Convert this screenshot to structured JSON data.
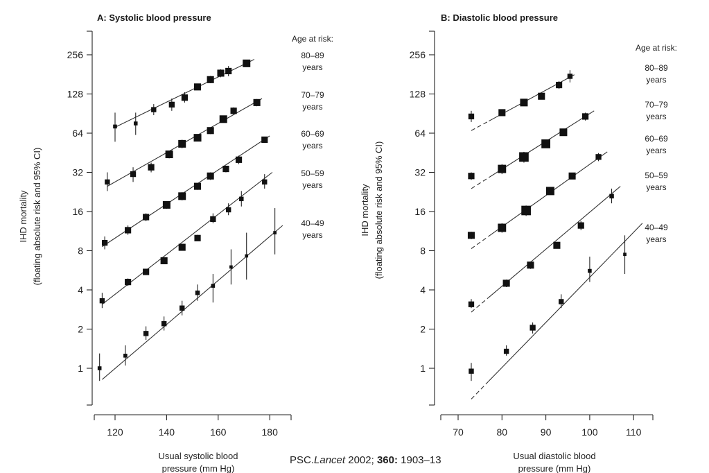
{
  "citation": {
    "prefix": "PSC.",
    "journal": "Lancet",
    "year": " 2002; ",
    "volume": "360:",
    "pages": " 1903–13"
  },
  "chart_data": [
    {
      "type": "scatter",
      "title": "A: Systolic blood pressure",
      "xlabel": [
        "Usual systolic blood",
        "pressure (mm Hg)"
      ],
      "ylabel": [
        "IHD mortality",
        "(floating absolute risk and 95% CI)"
      ],
      "yscale": "log2",
      "xlim": [
        112,
        186
      ],
      "ylim": [
        0.5,
        310
      ],
      "xticks": [
        120,
        140,
        160,
        180
      ],
      "yticks": [
        1,
        2,
        4,
        8,
        16,
        32,
        64,
        128,
        256
      ],
      "ytick_labels": [
        "1",
        "2",
        "4",
        "8",
        "16",
        "32",
        "64",
        "128",
        "256"
      ],
      "legend_title": "Age at risk:",
      "series": [
        {
          "name": "80–89 years",
          "x": [
            120,
            128,
            135,
            142,
            147,
            152,
            157,
            161,
            164,
            171
          ],
          "y": [
            72,
            76,
            97,
            106,
            120,
            145,
            165,
            185,
            192,
            220
          ],
          "lo": [
            55,
            62,
            88,
            95,
            110,
            138,
            155,
            172,
            175,
            210
          ],
          "hi": [
            92,
            92,
            107,
            118,
            132,
            153,
            176,
            198,
            210,
            230
          ],
          "w": [
            0.4,
            0.4,
            0.6,
            0.7,
            0.8,
            0.9,
            0.9,
            0.9,
            0.8,
            1.0
          ],
          "fit": [
            [
              120,
              71
            ],
            [
              174,
              236
            ]
          ]
        },
        {
          "name": "70–79 years",
          "x": [
            117,
            127,
            134,
            141,
            146,
            152,
            157,
            162,
            166,
            175
          ],
          "y": [
            27,
            31,
            35,
            44,
            53,
            59,
            67,
            82,
            95,
            110
          ],
          "lo": [
            23,
            27,
            32,
            41,
            49,
            56,
            63,
            78,
            89,
            103
          ],
          "hi": [
            32,
            35,
            38,
            47,
            57,
            62,
            71,
            86,
            101,
            117
          ],
          "w": [
            0.6,
            0.7,
            0.8,
            1.0,
            1.0,
            1.0,
            0.9,
            1.0,
            0.8,
            0.9
          ],
          "fit": [
            [
              117,
              25
            ],
            [
              177,
              118
            ]
          ]
        },
        {
          "name": "60–69 years",
          "x": [
            116,
            125,
            132,
            140,
            146,
            152,
            157,
            163,
            168,
            178
          ],
          "y": [
            9.2,
            11.5,
            14.5,
            18,
            21,
            25,
            30,
            34,
            40,
            57
          ],
          "lo": [
            8.2,
            10.6,
            13.5,
            16.8,
            19.5,
            23.5,
            28,
            32,
            37,
            54
          ],
          "hi": [
            10.3,
            12.5,
            15.5,
            19.2,
            22.5,
            26.5,
            32,
            36,
            43,
            60
          ],
          "w": [
            0.7,
            0.8,
            0.8,
            1.0,
            1.0,
            0.9,
            0.9,
            0.8,
            0.8,
            0.8
          ],
          "fit": [
            [
              115,
              8.6
            ],
            [
              180,
              61
            ]
          ]
        },
        {
          "name": "50–59 years",
          "x": [
            115,
            125,
            132,
            139,
            146,
            152,
            158,
            164,
            169,
            178
          ],
          "y": [
            3.3,
            4.6,
            5.5,
            6.7,
            8.5,
            10,
            14,
            16.5,
            20,
            27
          ],
          "lo": [
            2.9,
            4.3,
            5.2,
            6.4,
            8.1,
            9.5,
            13,
            15,
            17.5,
            24
          ],
          "hi": [
            3.8,
            4.9,
            5.8,
            7.0,
            8.9,
            10.6,
            15.5,
            18.5,
            23,
            31
          ],
          "w": [
            0.6,
            0.8,
            0.8,
            0.9,
            0.9,
            0.8,
            0.7,
            0.6,
            0.5,
            0.6
          ],
          "fit": [
            [
              115,
              3.1
            ],
            [
              181,
              32
            ]
          ]
        },
        {
          "name": "40–49 years",
          "x": [
            114,
            124,
            132,
            139,
            146,
            152,
            158,
            165,
            171,
            182
          ],
          "y": [
            1.0,
            1.25,
            1.85,
            2.2,
            2.9,
            3.8,
            4.3,
            6.0,
            7.3,
            11
          ],
          "lo": [
            0.8,
            1.05,
            1.65,
            1.95,
            2.55,
            3.3,
            3.2,
            4.4,
            4.8,
            7.5
          ],
          "hi": [
            1.3,
            1.5,
            2.1,
            2.5,
            3.3,
            4.4,
            5.3,
            8.2,
            11,
            17
          ],
          "w": [
            0.4,
            0.4,
            0.6,
            0.6,
            0.6,
            0.5,
            0.4,
            0.3,
            0.3,
            0.3
          ],
          "fit": [
            [
              115,
              0.82
            ],
            [
              185,
              12.5
            ]
          ]
        }
      ]
    },
    {
      "type": "scatter",
      "title": "B: Diastolic blood pressure",
      "xlabel": [
        "Usual diastolic blood",
        "pressure (mm Hg)"
      ],
      "ylabel": [
        "IHD mortality",
        "(floating absolute risk and 95% CI)"
      ],
      "yscale": "log2",
      "xlim": [
        66.5,
        113.5
      ],
      "ylim": [
        0.5,
        310
      ],
      "xticks": [
        70,
        80,
        90,
        100,
        110
      ],
      "yticks": [
        1,
        2,
        4,
        8,
        16,
        32,
        64,
        128,
        256
      ],
      "ytick_labels": [
        "1",
        "2",
        "4",
        "8",
        "16",
        "32",
        "64",
        "128",
        "256"
      ],
      "legend_title": "Age at risk:",
      "series": [
        {
          "name": "80–89 years",
          "x": [
            73,
            80,
            85,
            89,
            93,
            95.5
          ],
          "y": [
            86,
            92,
            110,
            123,
            150,
            175
          ],
          "lo": [
            78,
            88,
            104,
            117,
            140,
            157
          ],
          "hi": [
            95,
            97,
            116,
            130,
            161,
            195
          ],
          "w": [
            0.7,
            0.9,
            1.0,
            0.9,
            0.8,
            0.6
          ],
          "fit": [
            [
              73,
              67
            ],
            [
              96.5,
              180
            ]
          ],
          "dash_until": 77
        },
        {
          "name": "70–79 years",
          "x": [
            73,
            80,
            85,
            90,
            94,
            99
          ],
          "y": [
            30,
            34,
            42,
            53,
            65,
            86
          ],
          "lo": [
            28,
            31,
            38,
            50,
            62,
            80
          ],
          "hi": [
            32,
            37,
            46,
            56,
            69,
            92
          ],
          "w": [
            0.8,
            1.1,
            1.3,
            1.2,
            1.0,
            0.8
          ],
          "fit": [
            [
              73,
              24
            ],
            [
              101,
              95
            ]
          ],
          "dash_until": 77
        },
        {
          "name": "60–69 years",
          "x": [
            73,
            80,
            85.5,
            91,
            96,
            102
          ],
          "y": [
            10.5,
            12,
            16.3,
            23,
            30,
            42
          ],
          "lo": [
            9.8,
            11,
            14.8,
            21.5,
            28.5,
            39
          ],
          "hi": [
            11.2,
            13,
            17.8,
            24.5,
            31.5,
            45
          ],
          "w": [
            0.9,
            1.1,
            1.3,
            1.1,
            0.9,
            0.7
          ],
          "fit": [
            [
              73,
              8.3
            ],
            [
              104,
              46
            ]
          ],
          "dash_until": 77
        },
        {
          "name": "50–59 years",
          "x": [
            73,
            81,
            86.5,
            92.5,
            98,
            105
          ],
          "y": [
            3.1,
            4.5,
            6.2,
            8.8,
            12.5,
            21
          ],
          "lo": [
            2.9,
            4.2,
            5.8,
            8.3,
            11.5,
            18.5
          ],
          "hi": [
            3.4,
            4.8,
            6.6,
            9.3,
            13.5,
            24
          ],
          "w": [
            0.7,
            0.9,
            0.9,
            0.9,
            0.8,
            0.5
          ],
          "fit": [
            [
              73,
              2.7
            ],
            [
              107,
              25
            ]
          ],
          "dash_until": 77
        },
        {
          "name": "40–49 years",
          "x": [
            73,
            81,
            87,
            93.5,
            100,
            108
          ],
          "y": [
            0.95,
            1.35,
            2.05,
            3.25,
            5.6,
            7.5
          ],
          "lo": [
            0.8,
            1.25,
            1.85,
            2.9,
            4.6,
            5.3
          ],
          "hi": [
            1.1,
            1.5,
            2.25,
            3.7,
            7.2,
            10.5
          ],
          "w": [
            0.6,
            0.6,
            0.7,
            0.6,
            0.4,
            0.3
          ],
          "fit": [
            [
              73,
              0.58
            ],
            [
              112,
              13
            ]
          ],
          "dash_until": 77
        }
      ]
    }
  ]
}
